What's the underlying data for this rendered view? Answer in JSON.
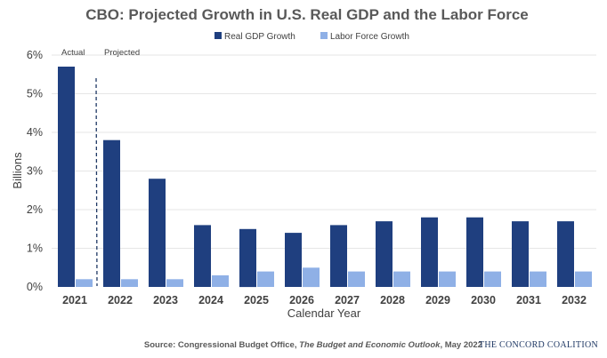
{
  "chart_data": {
    "type": "bar",
    "title": "CBO: Projected Growth in U.S. Real GDP and the Labor Force",
    "xlabel": "Calendar Year",
    "ylabel": "Billions",
    "ylim": [
      0,
      6
    ],
    "y_ticks": [
      "0%",
      "1%",
      "2%",
      "3%",
      "4%",
      "5%",
      "6%"
    ],
    "categories": [
      "2021",
      "2022",
      "2023",
      "2024",
      "2025",
      "2026",
      "2027",
      "2028",
      "2029",
      "2030",
      "2031",
      "2032"
    ],
    "series": [
      {
        "name": "Real GDP Growth",
        "color": "#1f3f7f",
        "values": [
          5.7,
          3.8,
          2.8,
          1.6,
          1.5,
          1.4,
          1.6,
          1.7,
          1.8,
          1.8,
          1.7,
          1.7
        ]
      },
      {
        "name": "Labor Force Growth",
        "color": "#8fb0e6",
        "values": [
          0.2,
          0.2,
          0.2,
          0.3,
          0.4,
          0.5,
          0.4,
          0.4,
          0.4,
          0.4,
          0.4,
          0.4
        ]
      }
    ],
    "grid": true,
    "legend": "top-center",
    "annotations": {
      "actual": "Actual",
      "projected": "Projected"
    }
  },
  "source": {
    "prefix": "Source: Congressional Budget Office, ",
    "publication": "The Budget and Economic Outlook",
    "suffix": ", May 2022"
  },
  "logo": {
    "text": "THE CONCORD COALITION"
  }
}
